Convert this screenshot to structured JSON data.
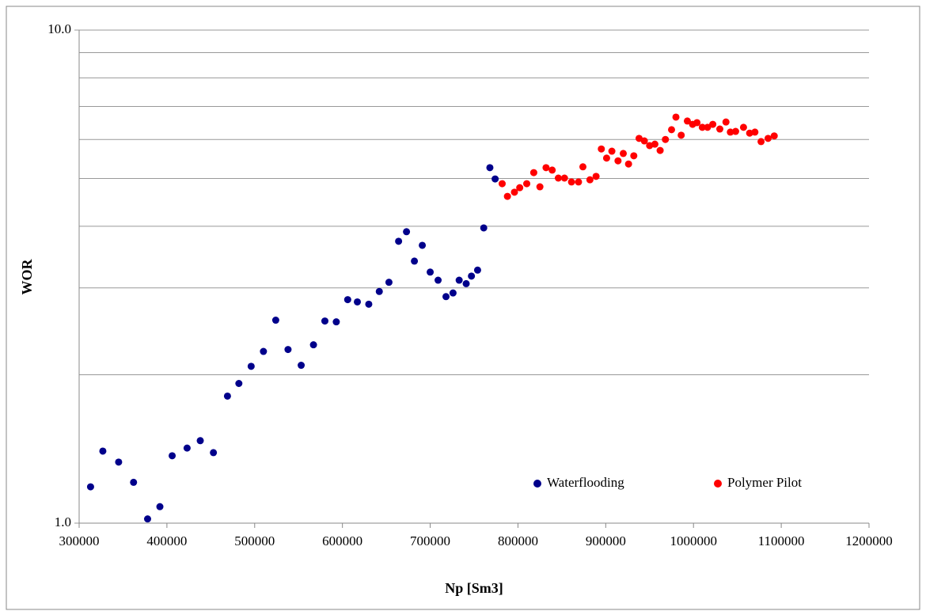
{
  "chart_data": {
    "type": "scatter",
    "xlabel": "Np [Sm3]",
    "ylabel": "WOR",
    "xlim": [
      300000,
      1200000
    ],
    "xticks": [
      300000,
      400000,
      500000,
      600000,
      700000,
      800000,
      900000,
      1000000,
      1100000,
      1200000
    ],
    "ylim": [
      1,
      10
    ],
    "yscale": "log",
    "yticks": [
      {
        "value": 1,
        "label": "1.0"
      },
      {
        "value": 10,
        "label": "10.0"
      }
    ],
    "yminor": [
      2,
      3,
      4,
      5,
      6,
      7,
      8,
      9
    ],
    "grid": true,
    "legend": "lower right",
    "series": [
      {
        "name": "Waterflooding",
        "color": "#00008b",
        "x": [
          313000,
          327000,
          345000,
          362000,
          378000,
          392000,
          406000,
          423000,
          438000,
          453000,
          469000,
          482000,
          496000,
          510000,
          524000,
          538000,
          553000,
          567000,
          580000,
          593000,
          606000,
          617000,
          630000,
          642000,
          653000,
          664000,
          673000,
          682000,
          691000,
          700000,
          709000,
          718000,
          726000,
          733000,
          741000,
          747000,
          754000,
          761000,
          768000,
          774000
        ],
        "values": [
          1.185,
          1.4,
          1.33,
          1.21,
          1.02,
          1.08,
          1.37,
          1.42,
          1.47,
          1.39,
          1.81,
          1.92,
          2.08,
          2.23,
          2.58,
          2.25,
          2.09,
          2.3,
          2.57,
          2.56,
          2.84,
          2.81,
          2.78,
          2.95,
          3.08,
          3.73,
          3.9,
          3.4,
          3.66,
          3.23,
          3.11,
          2.88,
          2.93,
          3.11,
          3.06,
          3.17,
          3.26,
          3.97,
          5.26,
          4.99
        ]
      },
      {
        "name": "Polymer Pilot",
        "color": "#ff0000",
        "x": [
          782000,
          788000,
          796000,
          802000,
          810000,
          818000,
          825000,
          832000,
          839000,
          846000,
          853000,
          861000,
          869000,
          874000,
          882000,
          889000,
          895000,
          901000,
          907000,
          914000,
          920000,
          926000,
          932000,
          938000,
          944000,
          950000,
          956000,
          962000,
          968000,
          975000,
          980000,
          986000,
          993000,
          999000,
          1004000,
          1010000,
          1016000,
          1022000,
          1030000,
          1037000,
          1042000,
          1048000,
          1057000,
          1064000,
          1070000,
          1077000,
          1085000,
          1092000
        ],
        "values": [
          4.88,
          4.6,
          4.69,
          4.79,
          4.88,
          5.14,
          4.81,
          5.26,
          5.2,
          5.01,
          5.01,
          4.92,
          4.92,
          5.28,
          4.97,
          5.05,
          5.74,
          5.5,
          5.68,
          5.43,
          5.62,
          5.35,
          5.56,
          6.03,
          5.96,
          5.83,
          5.87,
          5.7,
          6.0,
          6.28,
          6.66,
          6.12,
          6.54,
          6.44,
          6.49,
          6.35,
          6.35,
          6.44,
          6.3,
          6.51,
          6.21,
          6.23,
          6.35,
          6.18,
          6.21,
          5.94,
          6.03,
          6.1
        ]
      }
    ]
  }
}
